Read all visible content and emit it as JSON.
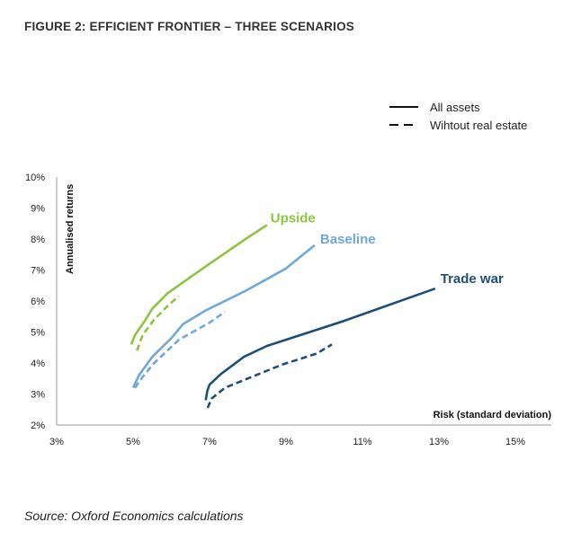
{
  "figure_title": "FIGURE 2: EFFICIENT FRONTIER – THREE SCENARIOS",
  "source": "Source: Oxford Economics calculations",
  "colors": {
    "upside": "#8cc63f",
    "baseline": "#6fa8dc",
    "trade_war": "#1f4e79",
    "legend": "#111111",
    "axis": "#999999"
  },
  "chart_data": {
    "type": "line",
    "xlabel": "Risk (standard deviation)",
    "ylabel": "Annualised returns",
    "xlim": [
      3,
      15
    ],
    "ylim": [
      2,
      10
    ],
    "x_ticks": [
      "3%",
      "5%",
      "7%",
      "9%",
      "11%",
      "13%",
      "15%"
    ],
    "y_ticks": [
      "2%",
      "3%",
      "4%",
      "5%",
      "6%",
      "7%",
      "8%",
      "9%",
      "10%"
    ],
    "grid": false,
    "legend": [
      {
        "label": "All assets",
        "style": "solid"
      },
      {
        "label": "Wihtout real estate",
        "style": "dashed"
      }
    ],
    "series": [
      {
        "scenario": "Upside",
        "label": "Upside",
        "color_key": "upside",
        "style": "solid",
        "points": [
          [
            4.95,
            4.6
          ],
          [
            5.05,
            4.9
          ],
          [
            5.3,
            5.35
          ],
          [
            5.5,
            5.75
          ],
          [
            5.9,
            6.25
          ],
          [
            6.3,
            6.6
          ],
          [
            7.0,
            7.2
          ],
          [
            8.0,
            8.05
          ],
          [
            8.5,
            8.45
          ]
        ]
      },
      {
        "scenario": "Upside",
        "label": "",
        "color_key": "upside",
        "style": "dashed",
        "points": [
          [
            5.1,
            4.4
          ],
          [
            5.25,
            4.9
          ],
          [
            5.55,
            5.4
          ],
          [
            5.95,
            5.9
          ],
          [
            6.2,
            6.15
          ]
        ]
      },
      {
        "scenario": "Baseline",
        "label": "Baseline",
        "color_key": "baseline",
        "style": "solid",
        "points": [
          [
            5.0,
            3.2
          ],
          [
            5.15,
            3.6
          ],
          [
            5.5,
            4.2
          ],
          [
            6.0,
            4.8
          ],
          [
            6.3,
            5.25
          ],
          [
            6.9,
            5.7
          ],
          [
            7.9,
            6.3
          ],
          [
            9.0,
            7.05
          ],
          [
            9.3,
            7.35
          ],
          [
            9.75,
            7.8
          ]
        ]
      },
      {
        "scenario": "Baseline",
        "label": "",
        "color_key": "baseline",
        "style": "dashed",
        "points": [
          [
            5.05,
            3.2
          ],
          [
            5.25,
            3.55
          ],
          [
            5.55,
            4.0
          ],
          [
            6.2,
            4.75
          ],
          [
            7.0,
            5.3
          ],
          [
            7.4,
            5.65
          ]
        ]
      },
      {
        "scenario": "Trade war",
        "label": "Trade war",
        "color_key": "trade_war",
        "style": "solid",
        "points": [
          [
            6.9,
            2.8
          ],
          [
            6.92,
            2.95
          ],
          [
            6.94,
            3.1
          ],
          [
            7.0,
            3.3
          ],
          [
            7.3,
            3.65
          ],
          [
            7.9,
            4.2
          ],
          [
            8.5,
            4.55
          ],
          [
            10.5,
            5.35
          ],
          [
            12.9,
            6.4
          ]
        ]
      },
      {
        "scenario": "Trade war",
        "label": "",
        "color_key": "trade_war",
        "style": "dashed",
        "points": [
          [
            6.95,
            2.55
          ],
          [
            7.05,
            2.85
          ],
          [
            7.4,
            3.2
          ],
          [
            8.2,
            3.6
          ],
          [
            8.9,
            3.95
          ],
          [
            9.8,
            4.3
          ],
          [
            10.2,
            4.6
          ]
        ]
      }
    ]
  }
}
